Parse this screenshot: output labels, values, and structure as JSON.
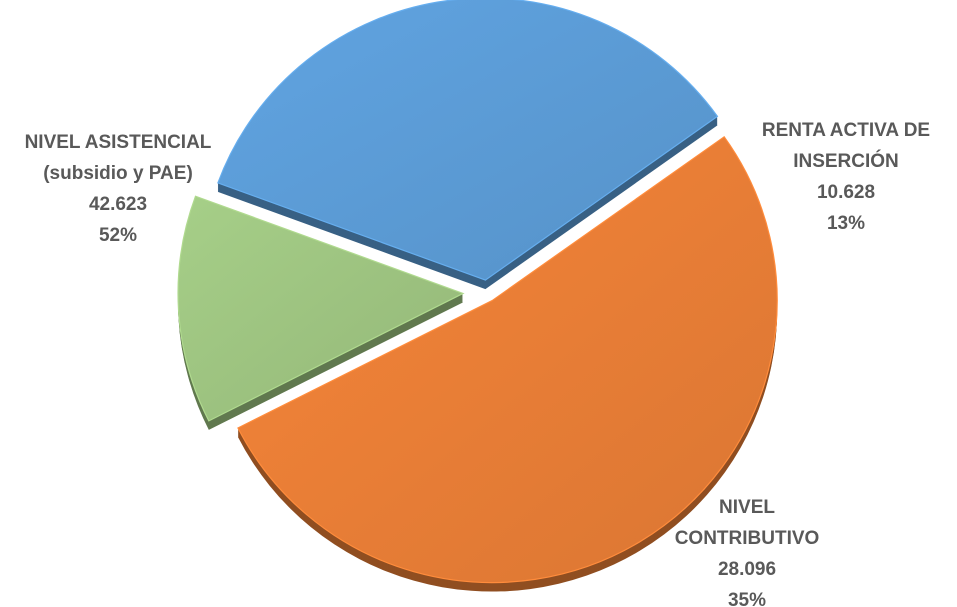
{
  "chart_data": {
    "type": "pie",
    "title": "",
    "exploded": true,
    "style": "3d",
    "slices": [
      {
        "label_lines": [
          "NIVEL ASISTENCIAL",
          "(subsidio y PAE)"
        ],
        "value": 42623,
        "value_label": "42.623",
        "percent_label": "52%",
        "color": "#E87D36"
      },
      {
        "label_lines": [
          "RENTA ACTIVA DE",
          "INSERCIÓN"
        ],
        "value": 10628,
        "value_label": "10.628",
        "percent_label": "13%",
        "color": "#9DC380"
      },
      {
        "label_lines": [
          "NIVEL",
          "CONTRIBUTIVO"
        ],
        "value": 28096,
        "value_label": "28.096",
        "percent_label": "35%",
        "color": "#5B9BD5"
      }
    ]
  }
}
